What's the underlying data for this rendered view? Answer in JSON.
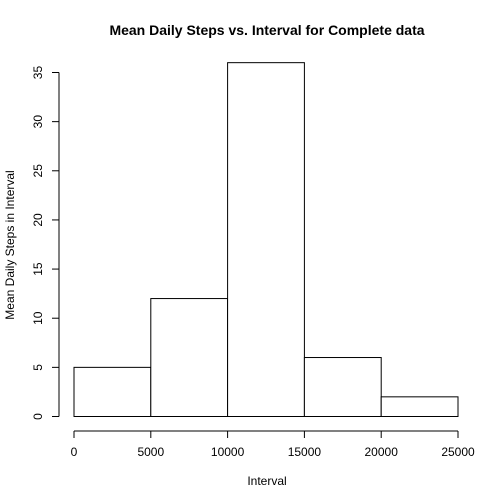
{
  "chart_data": {
    "type": "bar",
    "title": "Mean Daily Steps vs. Interval for Complete data",
    "xlabel": "Interval",
    "ylabel": "Mean Daily Steps in Interval",
    "bins": [
      {
        "start": 0,
        "end": 5000,
        "value": 5
      },
      {
        "start": 5000,
        "end": 10000,
        "value": 12
      },
      {
        "start": 10000,
        "end": 15000,
        "value": 36
      },
      {
        "start": 15000,
        "end": 20000,
        "value": 6
      },
      {
        "start": 20000,
        "end": 25000,
        "value": 2
      }
    ],
    "xlim": [
      0,
      25000
    ],
    "ylim": [
      0,
      35
    ],
    "x_ticks": [
      "0",
      "5000",
      "10000",
      "15000",
      "20000",
      "25000"
    ],
    "y_ticks": [
      "0",
      "5",
      "10",
      "15",
      "20",
      "25",
      "30",
      "35"
    ],
    "grid": false
  }
}
